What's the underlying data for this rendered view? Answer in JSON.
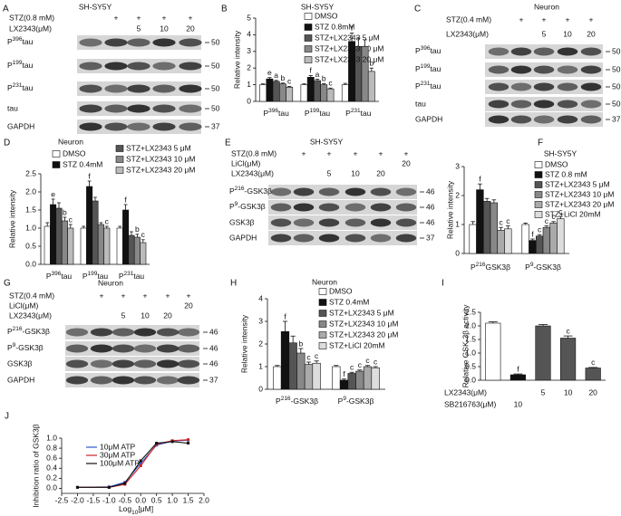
{
  "blots": [
    {
      "letter": "A",
      "title": "SH-SY5Y",
      "conditions": [
        {
          "label": "STZ(0.8 mM)",
          "marks": [
            null,
            "+",
            "+",
            "+",
            "+"
          ]
        },
        {
          "label": "LX2343(μM)",
          "marks": [
            null,
            null,
            "5",
            "10",
            "20"
          ]
        }
      ],
      "rows": [
        {
          "label": {
            "pre": "P",
            "sup": "396",
            "post": "tau"
          },
          "marker": 50
        },
        {
          "label": {
            "pre": "P",
            "sup": "199",
            "post": "tau"
          },
          "marker": 50
        },
        {
          "label": {
            "pre": "P",
            "sup": "231",
            "post": "tau"
          },
          "marker": 50
        },
        {
          "label": "tau",
          "marker": 50
        },
        {
          "label": "GAPDH",
          "marker": 37
        }
      ]
    },
    {
      "letter": "C",
      "title": "Neuron",
      "conditions": [
        {
          "label": "STZ(0.4 mM)",
          "marks": [
            null,
            "+",
            "+",
            "+",
            "+"
          ]
        },
        {
          "label": "LX2343(μM)",
          "marks": [
            null,
            null,
            "5",
            "10",
            "20"
          ]
        }
      ],
      "rows": [
        {
          "label": {
            "pre": "P",
            "sup": "396",
            "post": "tau"
          },
          "marker": 50
        },
        {
          "label": {
            "pre": "P",
            "sup": "199",
            "post": "tau"
          },
          "marker": 50
        },
        {
          "label": {
            "pre": "P",
            "sup": "231",
            "post": "tau"
          },
          "marker": 50
        },
        {
          "label": "tau",
          "marker": 50
        },
        {
          "label": "GAPDH",
          "marker": 37
        }
      ]
    },
    {
      "letter": "E",
      "title": "SH-SY5Y",
      "conditions": [
        {
          "label": "STZ(0.8 mM)",
          "marks": [
            null,
            "+",
            "+",
            "+",
            "+",
            "+"
          ]
        },
        {
          "label": "LiCl(μM)",
          "marks": [
            null,
            null,
            null,
            null,
            null,
            "20"
          ]
        },
        {
          "label": "LX2343(μM)",
          "marks": [
            null,
            null,
            "5",
            "10",
            "20",
            null
          ]
        }
      ],
      "rows": [
        {
          "label": {
            "pre": "P",
            "sup": "216",
            "post": "-GSK3β"
          },
          "marker": 46
        },
        {
          "label": {
            "pre": "P",
            "sup": "9",
            "post": "-GSK3β"
          },
          "marker": 46
        },
        {
          "label": "GSK3β",
          "marker": 46
        },
        {
          "label": "GAPDH",
          "marker": 37
        }
      ]
    },
    {
      "letter": "G",
      "title": "Neuron",
      "conditions": [
        {
          "label": "STZ(0.4 mM)",
          "marks": [
            null,
            "+",
            "+",
            "+",
            "+",
            "+"
          ]
        },
        {
          "label": "LiCl(μM)",
          "marks": [
            null,
            null,
            null,
            null,
            null,
            "20"
          ]
        },
        {
          "label": "LX2343(μM)",
          "marks": [
            null,
            null,
            "5",
            "10",
            "20",
            null
          ]
        }
      ],
      "rows": [
        {
          "label": {
            "pre": "P",
            "sup": "216",
            "post": "-GSK3β"
          },
          "marker": 46
        },
        {
          "label": {
            "pre": "P",
            "sup": "9",
            "post": "-GSK3β"
          },
          "marker": 46
        },
        {
          "label": "GSK3β",
          "marker": 46
        },
        {
          "label": "GAPDH",
          "marker": 37
        }
      ]
    }
  ],
  "chart_data": [
    {
      "type": "bar",
      "letter": "B",
      "title": "SH-SY5Y",
      "y_label": "Relative intensity",
      "ylim": [
        0,
        5
      ],
      "yticks": [
        0,
        1,
        2,
        3,
        4,
        5
      ],
      "groups": [
        {
          "pre": "P",
          "sup": "396",
          "post": "tau"
        },
        {
          "pre": "P",
          "sup": "199",
          "post": "tau"
        },
        {
          "pre": "P",
          "sup": "231",
          "post": "tau"
        }
      ],
      "series": [
        {
          "name": "DMSO",
          "color": "#ffffff",
          "values": [
            1.0,
            1.0,
            1.0
          ],
          "errors": [
            0.05,
            0.05,
            0.08
          ],
          "sig": [
            null,
            null,
            null
          ]
        },
        {
          "name": "STZ 0.8mM",
          "color": "#111111",
          "values": [
            1.35,
            1.45,
            3.6
          ],
          "errors": [
            0.08,
            0.1,
            0.5
          ],
          "sig": [
            "e",
            "f",
            "f"
          ]
        },
        {
          "name": "STZ+LX2343 5 μM",
          "color": "#555555",
          "values": [
            1.2,
            1.25,
            3.3
          ],
          "errors": [
            0.06,
            0.08,
            0.5
          ],
          "sig": [
            "a",
            "a",
            null
          ]
        },
        {
          "name": "STZ+LX2343 10 μM",
          "color": "#888888",
          "values": [
            1.05,
            1.0,
            3.3
          ],
          "errors": [
            0.05,
            0.06,
            0.4
          ],
          "sig": [
            "b",
            "b",
            null
          ]
        },
        {
          "name": "STZ+LX2343 20 μM",
          "color": "#bbbbbb",
          "values": [
            0.85,
            0.75,
            1.8
          ],
          "errors": [
            0.05,
            0.05,
            0.2
          ],
          "sig": [
            "c",
            "c",
            "b"
          ]
        }
      ]
    },
    {
      "type": "bar",
      "letter": "D",
      "title": "Neuron",
      "y_label": "Relative intensity",
      "ylim": [
        0,
        2.5
      ],
      "yticks": [
        {
          "value": 0,
          "label": "0.0"
        },
        0.5,
        {
          "value": 1,
          "label": "1.0"
        },
        1.5,
        {
          "value": 2,
          "label": "2.0"
        },
        2.5
      ],
      "groups": [
        {
          "pre": "P",
          "sup": "396",
          "post": "tau"
        },
        {
          "pre": "P",
          "sup": "199",
          "post": "tau"
        },
        {
          "pre": "P",
          "sup": "231",
          "post": "tau"
        }
      ],
      "series": [
        {
          "name": "DMSO",
          "color": "#ffffff",
          "values": [
            1.05,
            1.0,
            1.0
          ],
          "errors": [
            0.1,
            0.05,
            0.05
          ],
          "sig": [
            null,
            null,
            null
          ]
        },
        {
          "name": "STZ 0.4mM",
          "color": "#111111",
          "values": [
            1.65,
            2.15,
            1.5
          ],
          "errors": [
            0.15,
            0.15,
            0.15
          ],
          "sig": [
            "e",
            "f",
            "f"
          ]
        },
        {
          "name": "STZ+LX2343 5 μM",
          "color": "#555555",
          "values": [
            1.55,
            1.75,
            0.8
          ],
          "errors": [
            0.15,
            0.1,
            0.1
          ],
          "sig": [
            null,
            null,
            null
          ]
        },
        {
          "name": "STZ+LX2343 10 μM",
          "color": "#888888",
          "values": [
            1.2,
            1.1,
            0.75
          ],
          "errors": [
            0.1,
            0.05,
            0.08
          ],
          "sig": [
            "b",
            null,
            "b"
          ]
        },
        {
          "name": "STZ+LX2343 20 μM",
          "color": "#bbbbbb",
          "values": [
            1.0,
            1.0,
            0.6
          ],
          "errors": [
            0.1,
            0.05,
            0.08
          ],
          "sig": [
            "c",
            "c",
            "c"
          ]
        }
      ]
    },
    {
      "type": "bar",
      "letter": "F",
      "title": "SH-SY5Y",
      "y_label": "Relative intensity",
      "ylim": [
        0,
        3
      ],
      "yticks": [
        0,
        1,
        2,
        3
      ],
      "groups": [
        {
          "pre": "P",
          "sup": "216",
          "post": "GSK3β"
        },
        {
          "pre": "P",
          "sup": "9",
          "post": "-GSK3β"
        }
      ],
      "series": [
        {
          "name": "DMSO",
          "color": "#ffffff",
          "values": [
            1.0,
            1.0
          ],
          "errors": [
            0.1,
            0.05
          ],
          "sig": [
            null,
            null
          ]
        },
        {
          "name": "STZ 0.8 mM",
          "color": "#111111",
          "values": [
            2.2,
            0.45
          ],
          "errors": [
            0.2,
            0.05
          ],
          "sig": [
            "f",
            "f"
          ]
        },
        {
          "name": "STZ+LX2343 5 μM",
          "color": "#555555",
          "values": [
            1.8,
            0.6
          ],
          "errors": [
            0.1,
            0.05
          ],
          "sig": [
            null,
            "c"
          ]
        },
        {
          "name": "STZ+LX2343 10 μM",
          "color": "#888888",
          "values": [
            1.75,
            0.9
          ],
          "errors": [
            0.1,
            0.05
          ],
          "sig": [
            null,
            "c"
          ]
        },
        {
          "name": "STZ+LX2343 20 μM",
          "color": "#aaaaaa",
          "values": [
            0.8,
            1.05
          ],
          "errors": [
            0.1,
            0.05
          ],
          "sig": [
            "c",
            "c"
          ]
        },
        {
          "name": "STZ+LiCl 20mM",
          "color": "#dddddd",
          "values": [
            0.85,
            1.2
          ],
          "errors": [
            0.1,
            0.08
          ],
          "sig": [
            "c",
            "c"
          ]
        }
      ]
    },
    {
      "type": "bar",
      "letter": "H",
      "title": "Neuron",
      "y_label": "Relative intensity",
      "ylim": [
        0,
        4
      ],
      "yticks": [
        0,
        1,
        2,
        3,
        4
      ],
      "groups": [
        {
          "pre": "P",
          "sup": "216",
          "post": "-GSK3β"
        },
        {
          "pre": "P",
          "sup": "9",
          "post": "-GSK3β"
        }
      ],
      "series": [
        {
          "name": "DMSO",
          "color": "#ffffff",
          "values": [
            1.0,
            1.0
          ],
          "errors": [
            0.05,
            0.05
          ],
          "sig": [
            null,
            null
          ]
        },
        {
          "name": "STZ 0.4mM",
          "color": "#111111",
          "values": [
            2.55,
            0.4
          ],
          "errors": [
            0.45,
            0.05
          ],
          "sig": [
            "f",
            "f"
          ]
        },
        {
          "name": "STZ+LX2343 5 μM",
          "color": "#555555",
          "values": [
            2.05,
            0.7
          ],
          "errors": [
            0.3,
            0.05
          ],
          "sig": [
            null,
            "c"
          ]
        },
        {
          "name": "STZ+LX2343 10 μM",
          "color": "#888888",
          "values": [
            1.6,
            0.8
          ],
          "errors": [
            0.2,
            0.05
          ],
          "sig": [
            "b",
            "c"
          ]
        },
        {
          "name": "STZ+LX2343 20 μM",
          "color": "#aaaaaa",
          "values": [
            1.1,
            1.0
          ],
          "errors": [
            0.1,
            0.05
          ],
          "sig": [
            "c",
            "c"
          ]
        },
        {
          "name": "STZ+LiCl 20mM",
          "color": "#dddddd",
          "values": [
            1.15,
            0.95
          ],
          "errors": [
            0.1,
            0.05
          ],
          "sig": [
            "c",
            "c"
          ]
        }
      ]
    },
    {
      "type": "bar",
      "letter": "I",
      "y_label": "Relative GSK-3β activity",
      "ylim": [
        0,
        2.5
      ],
      "yticks": [
        {
          "value": 0,
          "label": "0.0"
        },
        0.5,
        {
          "value": 1,
          "label": "1.0"
        },
        1.5,
        {
          "value": 2,
          "label": "2.0"
        },
        2.5
      ],
      "series": [
        {
          "colors": [
            "#ffffff",
            "#111111",
            "#555555",
            "#555555",
            "#555555"
          ],
          "values": [
            2.1,
            0.2,
            2.0,
            1.55,
            0.45
          ],
          "errors": [
            0.05,
            0.03,
            0.05,
            0.08,
            0.02
          ],
          "sig": [
            null,
            "f",
            null,
            "c",
            "c"
          ]
        }
      ],
      "conditions": [
        {
          "label": "LX2343(μM)",
          "marks": [
            null,
            null,
            "5",
            "10",
            "20"
          ]
        },
        {
          "label": "SB216763(μM)",
          "marks": [
            null,
            "10",
            null,
            null,
            null
          ]
        }
      ]
    },
    {
      "type": "line",
      "letter": "J",
      "y_label": "Inhibition ratio of GSK3β",
      "x_label": {
        "pre": "Log",
        "sub": "10",
        "post": "[μM]"
      },
      "xlim": [
        -2.5,
        2.0
      ],
      "xticks": [
        -2.5,
        {
          "value": -2,
          "label": "-2.0"
        },
        -1.5,
        {
          "value": -1,
          "label": "-1.0"
        },
        -0.5,
        {
          "value": 0,
          "label": "0.0"
        },
        0.5,
        {
          "value": 1,
          "label": "1.0"
        },
        1.5,
        {
          "value": 2,
          "label": "2.0"
        }
      ],
      "ylim": [
        -0.1,
        1.0
      ],
      "yticks": [
        {
          "value": 0,
          "label": "0.0"
        },
        0.2,
        0.4,
        0.6,
        0.8,
        {
          "value": 1,
          "label": "1.0"
        }
      ],
      "x": [
        -2,
        -1,
        -0.5,
        0,
        0.5,
        1,
        1.5
      ],
      "series": [
        {
          "name": "10μM ATP",
          "color": "#3355cc",
          "values": [
            0.02,
            0.03,
            0.12,
            0.5,
            0.86,
            0.94,
            0.96
          ]
        },
        {
          "name": "30μM ATP",
          "color": "#cc2222",
          "values": [
            0.02,
            0.02,
            0.08,
            0.45,
            0.88,
            0.95,
            0.97
          ]
        },
        {
          "name": "100μM ATP",
          "color": "#111111",
          "values": [
            0.02,
            0.02,
            0.1,
            0.55,
            0.9,
            0.93,
            0.9
          ]
        }
      ]
    }
  ]
}
